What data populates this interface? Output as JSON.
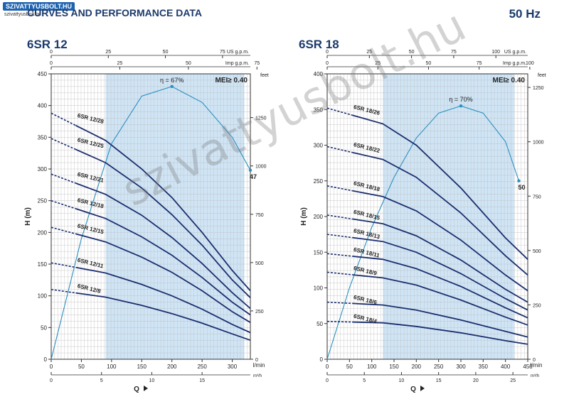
{
  "watermark_badge": "SZIVATTYUSBOLT.HU",
  "watermark_badge_sub": "szivattyusbolt.hu",
  "page_title": "CURVES AND PERFORMANCE DATA",
  "frequency": "50 Hz",
  "watermark_text": "szivattyusbolt.hu",
  "colors": {
    "band": "#cfe5f6",
    "curve": "#1b2e6e",
    "efficiency": "#2b8fbf",
    "grid": "#bdbdbd",
    "title": "#1b3a6b"
  },
  "chart_data": [
    {
      "type": "line",
      "title": "6SR 12",
      "mei": "MEI≥ 0.40",
      "efficiency_label": "η = 67%",
      "efficiency_end_label": "47",
      "xlabel": "Q",
      "ylabel": "H (m)",
      "x_unit": "l/min",
      "x2_unit": "m³/h",
      "top_unit_1": "US g.p.m.",
      "top_unit_2": "Imp g.p.m.",
      "right_unit": "feet",
      "xlim": [
        0,
        330
      ],
      "ylim": [
        0,
        450
      ],
      "grid": true,
      "x_ticks": [
        0,
        50,
        100,
        150,
        200,
        250,
        300
      ],
      "y_ticks": [
        0,
        50,
        100,
        150,
        200,
        250,
        300,
        350,
        400,
        450
      ],
      "m3h_ticks": [
        0,
        5,
        10,
        15
      ],
      "usgpm_ticks": [
        0,
        25,
        50,
        75
      ],
      "impgpm_ticks": [
        0,
        25,
        50,
        75
      ],
      "feet_ticks": [
        0,
        250,
        500,
        750,
        1000,
        1250
      ],
      "operating_range": [
        90,
        320
      ],
      "series": [
        {
          "name": "6SR 12/28",
          "x": [
            0,
            90,
            150,
            200,
            250,
            300,
            330
          ],
          "y": [
            388,
            345,
            300,
            255,
            200,
            140,
            108
          ]
        },
        {
          "name": "6SR 12/25",
          "x": [
            0,
            90,
            150,
            200,
            250,
            300,
            330
          ],
          "y": [
            348,
            310,
            270,
            228,
            180,
            125,
            97
          ]
        },
        {
          "name": "6SR 12/21",
          "x": [
            0,
            90,
            150,
            200,
            250,
            300,
            330
          ],
          "y": [
            292,
            260,
            227,
            192,
            151,
            105,
            80
          ]
        },
        {
          "name": "6SR 12/18",
          "x": [
            0,
            90,
            150,
            200,
            250,
            300,
            330
          ],
          "y": [
            250,
            222,
            193,
            164,
            129,
            90,
            70
          ]
        },
        {
          "name": "6SR 12/15",
          "x": [
            0,
            90,
            150,
            200,
            250,
            300,
            330
          ],
          "y": [
            208,
            185,
            161,
            137,
            108,
            75,
            58
          ]
        },
        {
          "name": "6SR 12/11",
          "x": [
            0,
            90,
            150,
            200,
            250,
            300,
            330
          ],
          "y": [
            152,
            136,
            118,
            100,
            79,
            55,
            42
          ]
        },
        {
          "name": "6SR 12/8",
          "x": [
            0,
            90,
            150,
            200,
            250,
            300,
            330
          ],
          "y": [
            110,
            98,
            85,
            72,
            57,
            40,
            30
          ]
        }
      ],
      "efficiency_curve": {
        "x": [
          0,
          50,
          100,
          150,
          200,
          250,
          300,
          330
        ],
        "y": [
          0,
          190,
          340,
          415,
          430,
          405,
          350,
          298
        ]
      }
    },
    {
      "type": "line",
      "title": "6SR 18",
      "mei": "MEI≥ 0.40",
      "efficiency_label": "η = 70%",
      "efficiency_end_label": "50",
      "xlabel": "Q",
      "ylabel": "H (m)",
      "x_unit": "l/min",
      "x2_unit": "m³/h",
      "top_unit_1": "US g.p.m.",
      "top_unit_2": "Imp g.p.m.",
      "right_unit": "feet",
      "xlim": [
        0,
        450
      ],
      "ylim": [
        0,
        400
      ],
      "grid": true,
      "x_ticks": [
        0,
        50,
        100,
        150,
        200,
        250,
        300,
        350,
        400,
        450
      ],
      "y_ticks": [
        0,
        50,
        100,
        150,
        200,
        250,
        300,
        350,
        400
      ],
      "m3h_ticks": [
        0,
        5,
        10,
        15,
        20,
        25
      ],
      "usgpm_ticks": [
        0,
        25,
        50,
        75,
        100
      ],
      "impgpm_ticks": [
        0,
        25,
        50,
        75,
        100
      ],
      "feet_ticks": [
        0,
        250,
        500,
        750,
        1000,
        1250
      ],
      "operating_range": [
        125,
        420
      ],
      "series": [
        {
          "name": "6SR 18/26",
          "x": [
            0,
            125,
            200,
            300,
            400,
            450
          ],
          "y": [
            352,
            330,
            300,
            240,
            170,
            140
          ]
        },
        {
          "name": "6SR 18/22",
          "x": [
            0,
            125,
            200,
            300,
            400,
            450
          ],
          "y": [
            298,
            280,
            255,
            205,
            145,
            118
          ]
        },
        {
          "name": "6SR 18/18",
          "x": [
            0,
            125,
            200,
            300,
            400,
            450
          ],
          "y": [
            243,
            228,
            208,
            167,
            118,
            96
          ]
        },
        {
          "name": "6SR 18/15",
          "x": [
            0,
            125,
            200,
            300,
            400,
            450
          ],
          "y": [
            202,
            190,
            173,
            139,
            98,
            80
          ]
        },
        {
          "name": "6SR 18/13",
          "x": [
            0,
            125,
            200,
            300,
            400,
            450
          ],
          "y": [
            175,
            165,
            150,
            120,
            85,
            69
          ]
        },
        {
          "name": "6SR 18/11",
          "x": [
            0,
            125,
            200,
            300,
            400,
            450
          ],
          "y": [
            148,
            140,
            127,
            102,
            72,
            58
          ]
        },
        {
          "name": "6SR 18/9",
          "x": [
            0,
            125,
            200,
            300,
            400,
            450
          ],
          "y": [
            122,
            114,
            104,
            83,
            59,
            48
          ]
        },
        {
          "name": "6SR 18/6",
          "x": [
            0,
            125,
            200,
            300,
            400,
            450
          ],
          "y": [
            80,
            76,
            69,
            55,
            39,
            31
          ]
        },
        {
          "name": "6SR 18/4",
          "x": [
            0,
            125,
            200,
            300,
            400,
            450
          ],
          "y": [
            53,
            51,
            46,
            37,
            26,
            21
          ]
        }
      ],
      "efficiency_curve": {
        "x": [
          0,
          50,
          100,
          150,
          200,
          250,
          300,
          350,
          400,
          430
        ],
        "y": [
          0,
          100,
          185,
          255,
          310,
          345,
          355,
          345,
          305,
          250
        ]
      }
    }
  ]
}
